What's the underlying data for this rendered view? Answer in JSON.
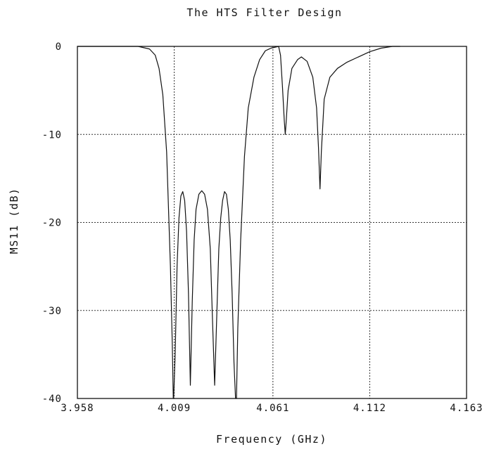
{
  "chart_data": {
    "type": "line",
    "title": "The HTS Filter Design",
    "xlabel": "Frequency (GHz)",
    "ylabel": "MS11 (dB)",
    "xlim": [
      3.958,
      4.163
    ],
    "ylim": [
      -40,
      0
    ],
    "x_ticks": [
      3.958,
      4.009,
      4.061,
      4.112,
      4.163
    ],
    "x_tick_labels": [
      "3.958",
      "4.009",
      "4.061",
      "4.112",
      "4.163"
    ],
    "y_ticks": [
      0,
      -10,
      -20,
      -30,
      -40
    ],
    "y_tick_labels": [
      "0",
      "-10",
      "-20",
      "-30",
      "-40"
    ],
    "grid": true,
    "legend": "none",
    "series": [
      {
        "points": [
          [
            3.958,
            0
          ],
          [
            3.99,
            0
          ],
          [
            3.996,
            -0.3
          ],
          [
            3.999,
            -1.0
          ],
          [
            4.001,
            -2.5
          ],
          [
            4.003,
            -5.5
          ],
          [
            4.005,
            -12.0
          ],
          [
            4.007,
            -25.0
          ],
          [
            4.008,
            -34.0
          ],
          [
            4.0085,
            -40.0
          ],
          [
            4.0087,
            -40.0
          ],
          [
            4.0095,
            -35.0
          ],
          [
            4.0105,
            -25.0
          ],
          [
            4.0115,
            -19.5
          ],
          [
            4.0125,
            -17.0
          ],
          [
            4.0135,
            -16.5
          ],
          [
            4.0145,
            -17.5
          ],
          [
            4.0155,
            -21.0
          ],
          [
            4.0165,
            -28.0
          ],
          [
            4.0175,
            -38.5
          ],
          [
            4.0185,
            -29.0
          ],
          [
            4.0195,
            -22.0
          ],
          [
            4.0205,
            -18.5
          ],
          [
            4.022,
            -16.8
          ],
          [
            4.0235,
            -16.4
          ],
          [
            4.025,
            -16.8
          ],
          [
            4.0265,
            -18.5
          ],
          [
            4.028,
            -23.0
          ],
          [
            4.029,
            -30.0
          ],
          [
            4.0303,
            -38.5
          ],
          [
            4.0315,
            -30.0
          ],
          [
            4.0325,
            -23.0
          ],
          [
            4.0335,
            -19.5
          ],
          [
            4.0345,
            -17.5
          ],
          [
            4.0355,
            -16.5
          ],
          [
            4.0365,
            -16.8
          ],
          [
            4.0375,
            -18.5
          ],
          [
            4.0385,
            -22.0
          ],
          [
            4.0395,
            -28.0
          ],
          [
            4.0405,
            -36.0
          ],
          [
            4.0413,
            -40.0
          ],
          [
            4.0418,
            -40.0
          ],
          [
            4.0425,
            -32.0
          ],
          [
            4.044,
            -22.0
          ],
          [
            4.046,
            -12.5
          ],
          [
            4.048,
            -7.0
          ],
          [
            4.051,
            -3.5
          ],
          [
            4.054,
            -1.5
          ],
          [
            4.057,
            -0.5
          ],
          [
            4.06,
            -0.2
          ],
          [
            4.062,
            -0.1
          ],
          [
            4.064,
            0
          ],
          [
            4.065,
            -1.0
          ],
          [
            4.066,
            -4.5
          ],
          [
            4.067,
            -8.5
          ],
          [
            4.0675,
            -10.0
          ],
          [
            4.068,
            -8.5
          ],
          [
            4.069,
            -5.0
          ],
          [
            4.071,
            -2.5
          ],
          [
            4.074,
            -1.5
          ],
          [
            4.076,
            -1.2
          ],
          [
            4.079,
            -1.7
          ],
          [
            4.082,
            -3.5
          ],
          [
            4.084,
            -7.0
          ],
          [
            4.085,
            -11.5
          ],
          [
            4.0858,
            -16.2
          ],
          [
            4.0865,
            -12.0
          ],
          [
            4.088,
            -6.0
          ],
          [
            4.091,
            -3.5
          ],
          [
            4.095,
            -2.5
          ],
          [
            4.1,
            -1.8
          ],
          [
            4.106,
            -1.2
          ],
          [
            4.112,
            -0.6
          ],
          [
            4.118,
            -0.2
          ],
          [
            4.124,
            0
          ],
          [
            4.128,
            0
          ]
        ]
      }
    ]
  }
}
